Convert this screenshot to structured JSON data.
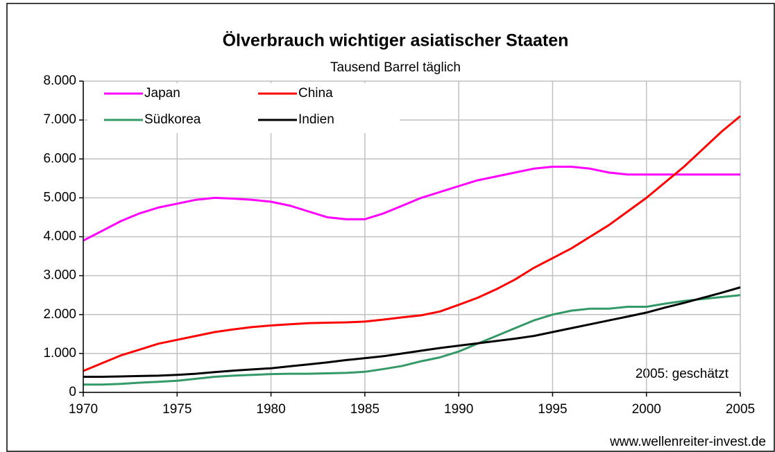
{
  "chart_data": {
    "type": "line",
    "title": "Ölverbrauch wichtiger asiatischer Staaten",
    "subtitle": "Tausend Barrel täglich",
    "annotations": [
      "2005: geschätzt",
      "www.wellenreiter-invest.de"
    ],
    "x": [
      1970,
      1971,
      1972,
      1973,
      1974,
      1975,
      1976,
      1977,
      1978,
      1979,
      1980,
      1981,
      1982,
      1983,
      1984,
      1985,
      1986,
      1987,
      1988,
      1989,
      1990,
      1991,
      1992,
      1993,
      1994,
      1995,
      1996,
      1997,
      1998,
      1999,
      2000,
      2001,
      2002,
      2003,
      2004,
      2005
    ],
    "series": [
      {
        "name": "Japan",
        "color": "#ff00ff",
        "values": [
          3900,
          4150,
          4400,
          4600,
          4750,
          4850,
          4950,
          5000,
          4980,
          4950,
          4900,
          4800,
          4650,
          4500,
          4450,
          4450,
          4600,
          4800,
          5000,
          5150,
          5300,
          5450,
          5550,
          5650,
          5750,
          5800,
          5800,
          5750,
          5650,
          5600,
          5600,
          5600,
          5600,
          5600,
          5600,
          5600
        ]
      },
      {
        "name": "China",
        "color": "#ff0000",
        "values": [
          550,
          750,
          950,
          1100,
          1250,
          1350,
          1450,
          1550,
          1620,
          1680,
          1720,
          1750,
          1780,
          1790,
          1800,
          1820,
          1870,
          1930,
          1980,
          2080,
          2250,
          2430,
          2650,
          2900,
          3200,
          3450,
          3700,
          4000,
          4300,
          4650,
          5000,
          5400,
          5800,
          6250,
          6700,
          7100
        ]
      },
      {
        "name": "Südkorea",
        "color": "#339966",
        "values": [
          200,
          200,
          220,
          250,
          270,
          300,
          350,
          400,
          430,
          450,
          470,
          480,
          480,
          490,
          500,
          530,
          600,
          680,
          800,
          900,
          1050,
          1250,
          1450,
          1650,
          1850,
          2000,
          2100,
          2150,
          2150,
          2200,
          2200,
          2280,
          2350,
          2400,
          2450,
          2500
        ]
      },
      {
        "name": "Indien",
        "color": "#000000",
        "values": [
          400,
          400,
          410,
          420,
          430,
          450,
          480,
          520,
          560,
          590,
          620,
          670,
          720,
          770,
          830,
          880,
          930,
          1000,
          1070,
          1140,
          1200,
          1260,
          1320,
          1380,
          1450,
          1550,
          1650,
          1750,
          1850,
          1950,
          2050,
          2180,
          2300,
          2430,
          2560,
          2700
        ]
      }
    ],
    "xlim": [
      1970,
      2005
    ],
    "xticks": [
      1970,
      1975,
      1980,
      1985,
      1990,
      1995,
      2000,
      2005
    ],
    "ylim": [
      0,
      8000
    ],
    "yticks": [
      0,
      {
        "value": 1000,
        "label": "1.000"
      },
      {
        "value": 2000,
        "label": "2.000"
      },
      {
        "value": 3000,
        "label": "3.000"
      },
      {
        "value": 4000,
        "label": "4.000"
      },
      {
        "value": 5000,
        "label": "5.000"
      },
      {
        "value": 6000,
        "label": "6.000"
      },
      {
        "value": 7000,
        "label": "7.000"
      },
      {
        "value": 8000,
        "label": "8.000"
      }
    ],
    "grid": true
  }
}
